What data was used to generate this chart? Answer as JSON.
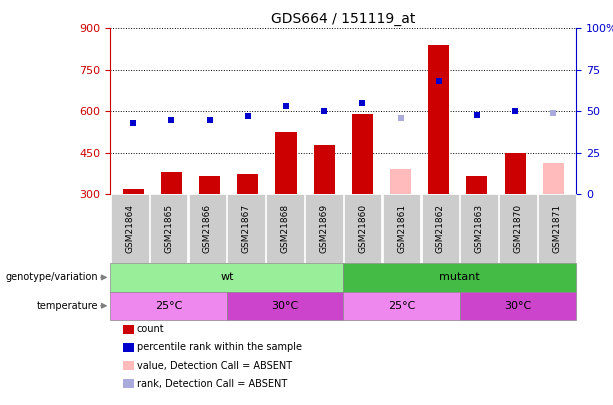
{
  "title": "GDS664 / 151119_at",
  "samples": [
    "GSM21864",
    "GSM21865",
    "GSM21866",
    "GSM21867",
    "GSM21868",
    "GSM21869",
    "GSM21860",
    "GSM21861",
    "GSM21862",
    "GSM21863",
    "GSM21870",
    "GSM21871"
  ],
  "count_values": [
    320,
    380,
    365,
    375,
    525,
    480,
    590,
    null,
    840,
    365,
    450,
    null
  ],
  "count_absent": [
    null,
    null,
    null,
    null,
    null,
    null,
    null,
    390,
    null,
    null,
    null,
    415
  ],
  "rank_values": [
    43,
    45,
    45,
    47,
    53,
    50,
    55,
    null,
    68,
    48,
    50,
    null
  ],
  "rank_absent": [
    null,
    null,
    null,
    null,
    null,
    null,
    null,
    46,
    null,
    null,
    null,
    49
  ],
  "ylim_left": [
    300,
    900
  ],
  "ylim_right": [
    0,
    100
  ],
  "yticks_left": [
    300,
    450,
    600,
    750,
    900
  ],
  "yticks_right": [
    0,
    25,
    50,
    75,
    100
  ],
  "bar_color_present": "#cc0000",
  "bar_color_absent": "#ffbbbb",
  "rank_color_present": "#0000cc",
  "rank_color_absent": "#aaaadd",
  "bar_bottom": 300,
  "wt_color": "#99ee99",
  "mutant_color": "#44bb44",
  "temp_25_color": "#ee88ee",
  "temp_30_color": "#cc44cc",
  "xticklabel_bg": "#cccccc",
  "legend_items": [
    {
      "label": "count",
      "color": "#cc0000"
    },
    {
      "label": "percentile rank within the sample",
      "color": "#0000cc"
    },
    {
      "label": "value, Detection Call = ABSENT",
      "color": "#ffbbbb"
    },
    {
      "label": "rank, Detection Call = ABSENT",
      "color": "#aaaadd"
    }
  ]
}
